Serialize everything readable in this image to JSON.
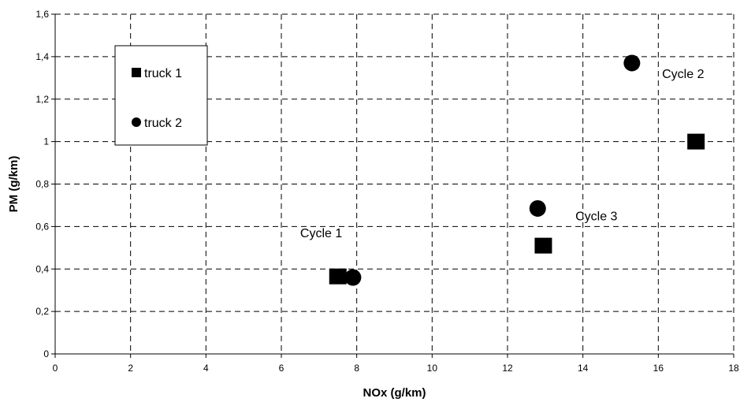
{
  "chart_data": {
    "type": "scatter",
    "title": "",
    "xlabel": "NOx (g/km)",
    "ylabel": "PM (g/km)",
    "xlim": [
      0,
      18
    ],
    "ylim": [
      0,
      1.6
    ],
    "x_ticks": [
      "0",
      "2",
      "4",
      "6",
      "8",
      "10",
      "12",
      "14",
      "16",
      "18"
    ],
    "y_ticks": [
      "0",
      "0,2",
      "0,4",
      "0,6",
      "0,8",
      "1",
      "1,2",
      "1,4",
      "1,6"
    ],
    "grid": true,
    "legend_position": "top-left",
    "series": [
      {
        "name": "truck 1",
        "marker": "square",
        "color": "#000000",
        "points": [
          {
            "x": 7.5,
            "y": 0.365
          },
          {
            "x": 12.95,
            "y": 0.51
          },
          {
            "x": 17.0,
            "y": 1.0
          }
        ]
      },
      {
        "name": "truck 2",
        "marker": "circle",
        "color": "#000000",
        "points": [
          {
            "x": 7.9,
            "y": 0.36
          },
          {
            "x": 12.8,
            "y": 0.685
          },
          {
            "x": 15.3,
            "y": 1.37
          }
        ]
      }
    ],
    "annotations": [
      {
        "text": "Cycle 1",
        "x": 6.5,
        "y": 0.55
      },
      {
        "text": "Cycle 3",
        "x": 13.8,
        "y": 0.63
      },
      {
        "text": "Cycle 2",
        "x": 16.1,
        "y": 1.3
      }
    ]
  }
}
